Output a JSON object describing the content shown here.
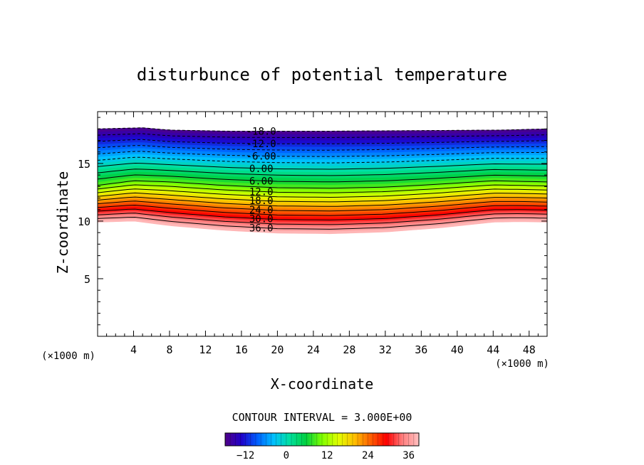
{
  "chart_data": {
    "type": "contour",
    "title": "disturbunce of potential temperature",
    "xlabel": "X-coordinate",
    "ylabel": "Z-coordinate",
    "x_unit": "(×1000 m)",
    "y_unit": "(×1000 m)",
    "xlim": [
      0,
      50
    ],
    "ylim": [
      0,
      19.5
    ],
    "x_ticks": [
      4,
      8,
      12,
      16,
      20,
      24,
      28,
      32,
      36,
      40,
      44,
      48
    ],
    "y_ticks": [
      5,
      10,
      15
    ],
    "contour_interval_text": "CONTOUR INTERVAL = 3.000E+00",
    "contour_interval": 3.0,
    "value_range": [
      -18,
      39
    ],
    "field": {
      "bottom_profile": [
        [
          0,
          9.9
        ],
        [
          4,
          10.0
        ],
        [
          8,
          9.6
        ],
        [
          14,
          9.2
        ],
        [
          20,
          8.95
        ],
        [
          26,
          8.9
        ],
        [
          32,
          9.05
        ],
        [
          38,
          9.4
        ],
        [
          44,
          9.9
        ],
        [
          47,
          9.95
        ],
        [
          50,
          9.9
        ]
      ],
      "top_profile": [
        [
          0,
          18.0
        ],
        [
          5,
          18.1
        ],
        [
          8,
          17.9
        ],
        [
          15,
          17.8
        ],
        [
          25,
          17.8
        ],
        [
          35,
          17.85
        ],
        [
          45,
          17.9
        ],
        [
          50,
          18.0
        ]
      ],
      "mid_height": 13.5,
      "mid_profile": [
        [
          0,
          13.1
        ],
        [
          4,
          13.5
        ],
        [
          8,
          13.4
        ],
        [
          14,
          13.1
        ],
        [
          20,
          12.9
        ],
        [
          26,
          12.85
        ],
        [
          32,
          12.95
        ],
        [
          38,
          13.2
        ],
        [
          44,
          13.5
        ],
        [
          50,
          13.4
        ]
      ]
    },
    "contour_labels": [
      "-18.0",
      "-12.0",
      "-6.00",
      "0.00",
      "6.00",
      "12.0",
      "18.0",
      "24.0",
      "30.0",
      "36.0"
    ],
    "colorbar": {
      "ticks": [
        -12,
        0,
        12,
        24,
        36
      ],
      "tick_labels": [
        "−12",
        "0",
        "12",
        "24",
        "36"
      ],
      "colors": [
        "#500088",
        "#1f00c8",
        "#0060ff",
        "#00c0ff",
        "#00e0a0",
        "#00d040",
        "#80ff00",
        "#e0ff00",
        "#ffc000",
        "#ff6000",
        "#ff0000",
        "#ff8080",
        "#ffc0c0"
      ]
    }
  }
}
